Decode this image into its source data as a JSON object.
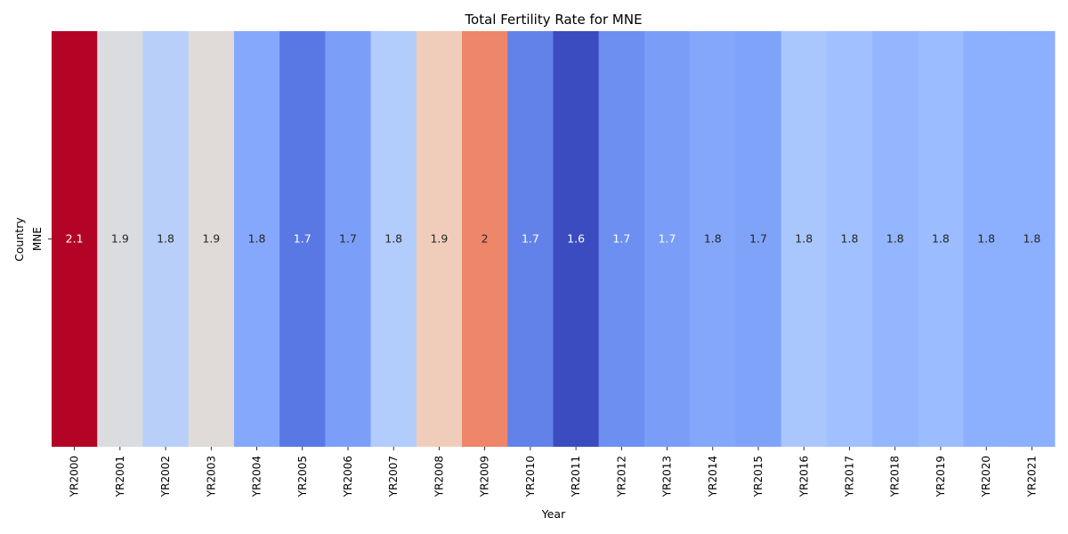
{
  "chart_data": {
    "type": "heatmap",
    "title": "Total Fertility Rate for MNE",
    "xlabel": "Year",
    "ylabel": "Country",
    "rows": [
      "MNE"
    ],
    "columns": [
      "YR2000",
      "YR2001",
      "YR2002",
      "YR2003",
      "YR2004",
      "YR2005",
      "YR2006",
      "YR2007",
      "YR2008",
      "YR2009",
      "YR2010",
      "YR2011",
      "YR2012",
      "YR2013",
      "YR2014",
      "YR2015",
      "YR2016",
      "YR2017",
      "YR2018",
      "YR2019",
      "YR2020",
      "YR2021"
    ],
    "values": [
      [
        2.1,
        1.9,
        1.8,
        1.9,
        1.8,
        1.7,
        1.7,
        1.8,
        1.9,
        2,
        1.7,
        1.6,
        1.7,
        1.7,
        1.8,
        1.7,
        1.8,
        1.8,
        1.8,
        1.8,
        1.8,
        1.8
      ]
    ],
    "cell_colors": [
      "#b40426",
      "#dadce0",
      "#b7cff9",
      "#e0dbd9",
      "#85a8fc",
      "#5a78e4",
      "#7b9ff9",
      "#b2ccfb",
      "#f0cdbb",
      "#ee8669",
      "#6282ea",
      "#3b4cc0",
      "#6c8ff1",
      "#7a9df8",
      "#84a7fc",
      "#80a3fa",
      "#aac7fd",
      "#a1c0ff",
      "#94b6ff",
      "#9bbcff",
      "#8db0fe",
      "#8caffe"
    ],
    "colormap": "coolwarm",
    "annotations": true,
    "colorbar": false,
    "grid": false
  }
}
